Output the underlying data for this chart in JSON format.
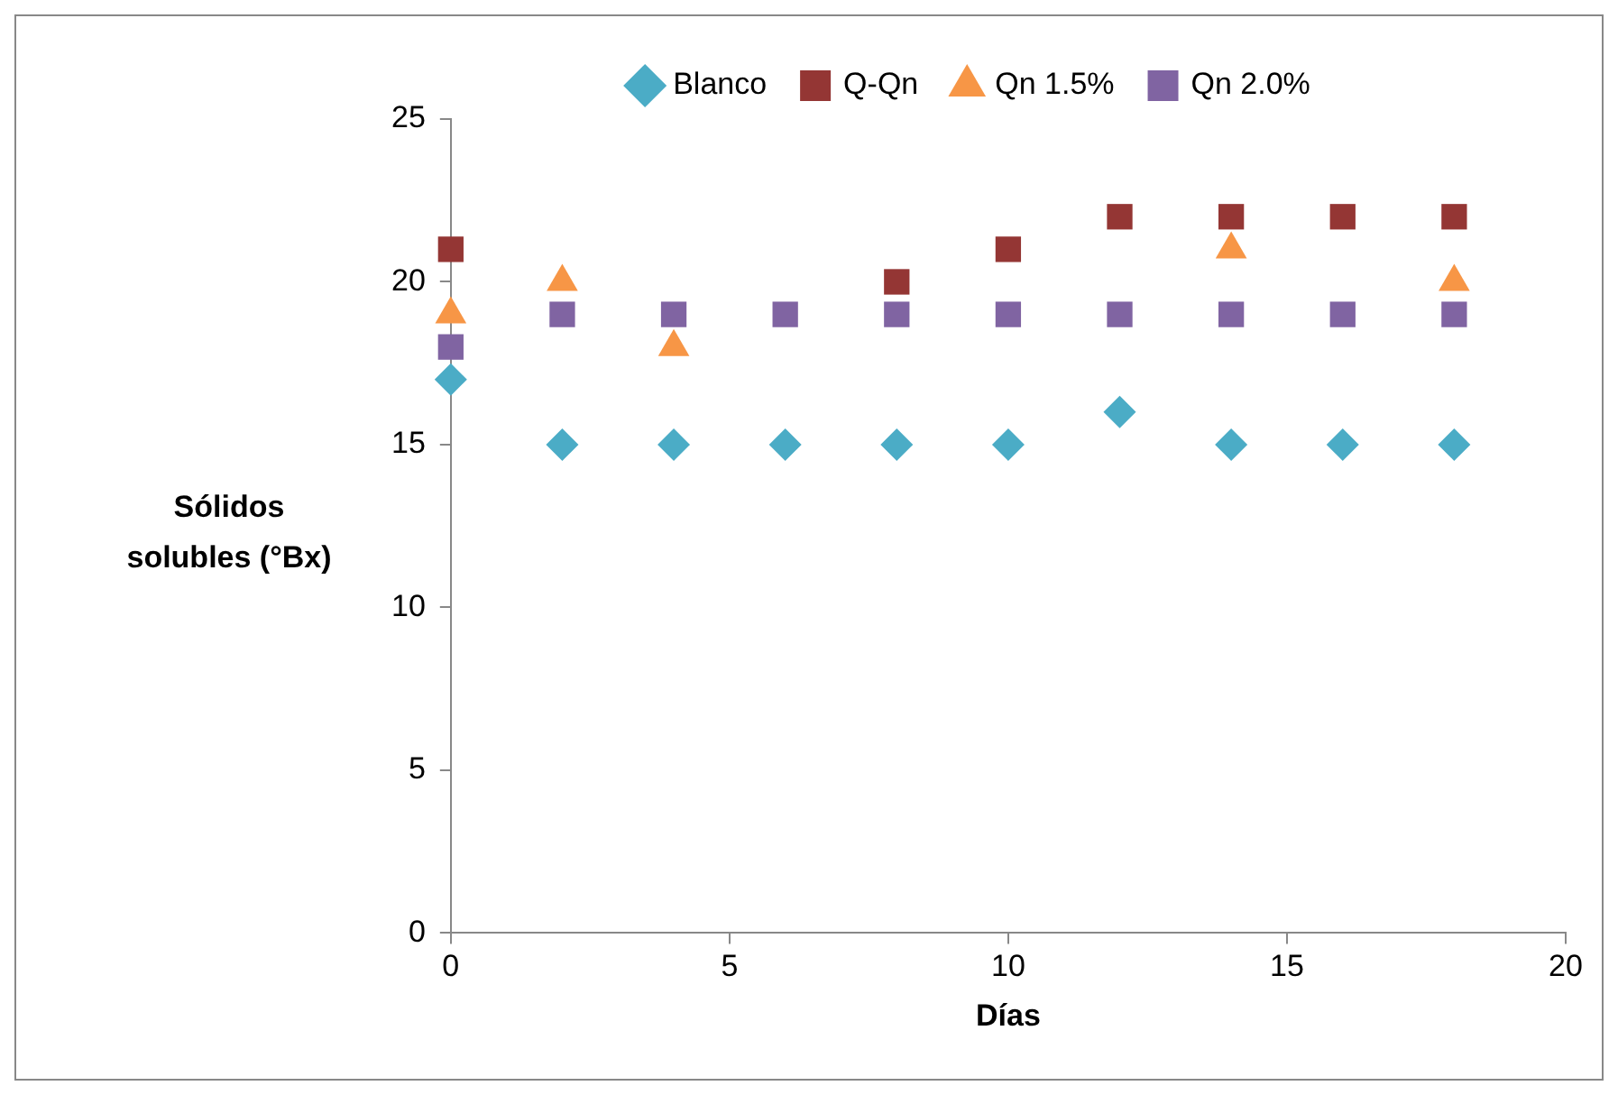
{
  "chart_data": {
    "type": "scatter",
    "xlabel": "Días",
    "ylabel": "Sólidos solubles (°Bx)",
    "x": [
      0,
      2,
      4,
      6,
      8,
      10,
      12,
      14,
      16,
      18
    ],
    "xlim": [
      0,
      20
    ],
    "xticks": [
      0,
      5,
      10,
      15,
      20
    ],
    "ylim": [
      0,
      25
    ],
    "yticks": [
      0,
      5,
      10,
      15,
      20,
      25
    ],
    "grid": false,
    "legend": "top",
    "series": [
      {
        "name": "Blanco",
        "color": "#4bacc6",
        "marker": "diamond",
        "values": [
          17,
          15,
          15,
          15,
          15,
          15,
          16,
          15,
          15,
          15
        ]
      },
      {
        "name": "Q-Qn",
        "color": "#943634",
        "marker": "square",
        "values": [
          21,
          null,
          null,
          null,
          20,
          21,
          22,
          22,
          22,
          22
        ]
      },
      {
        "name": "Qn 1.5%",
        "color": "#f79646",
        "marker": "triangle",
        "values": [
          19,
          20,
          18,
          null,
          null,
          null,
          null,
          21,
          null,
          20
        ]
      },
      {
        "name": "Qn 2.0%",
        "color": "#8064a2",
        "marker": "square",
        "values": [
          18,
          19,
          19,
          19,
          19,
          19,
          19,
          19,
          19,
          19
        ]
      }
    ]
  }
}
